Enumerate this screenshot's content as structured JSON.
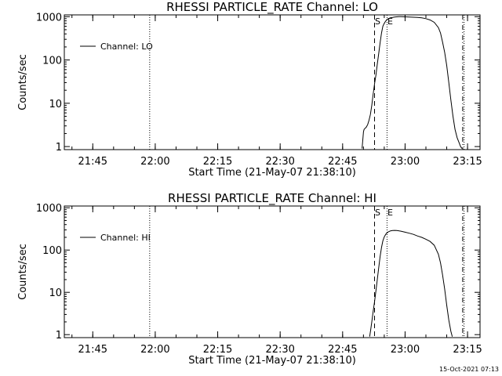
{
  "footer_timestamp": "15-Oct-2021 07:13",
  "chart_data": [
    {
      "type": "line",
      "title": "RHESSI PARTICLE_RATE Channel: LO",
      "xlabel": "Start Time (21-May-07 21:38:10)",
      "ylabel": "Counts/sec",
      "y_scale": "log",
      "xlim": [
        "21:38:10",
        "23:18:00"
      ],
      "ylim": [
        0.85,
        1100
      ],
      "x_ticks": [
        "21:45",
        "22:00",
        "22:15",
        "22:30",
        "22:45",
        "23:00",
        "23:15"
      ],
      "y_ticks": [
        "1",
        "10",
        "100",
        "1000"
      ],
      "grid": false,
      "legend": {
        "position": "upper-left",
        "entries": [
          "Channel: LO"
        ]
      },
      "markers": [
        {
          "label": "",
          "time": "21:58:40",
          "style": "dotted"
        },
        {
          "label": "S",
          "time": "22:52:40",
          "style": "dashed"
        },
        {
          "label": "E",
          "time": "22:55:40",
          "style": "dotted"
        },
        {
          "label": "",
          "time": "23:13:50",
          "style": "dashdot"
        },
        {
          "label": "",
          "time": "23:14:10",
          "style": "dotted"
        }
      ],
      "series": [
        {
          "name": "Channel: LO",
          "x": [
            "22:49:40",
            "22:49:50",
            "22:50:00",
            "22:50:10",
            "22:50:20",
            "22:50:40",
            "22:51:00",
            "22:51:20",
            "22:51:40",
            "22:52:00",
            "22:52:20",
            "22:52:40",
            "22:53:00",
            "22:53:20",
            "22:53:40",
            "22:54:00",
            "22:54:20",
            "22:54:40",
            "22:55:00",
            "22:55:20",
            "22:55:40",
            "22:56:00",
            "22:56:20",
            "22:56:40",
            "22:57:00",
            "22:57:30",
            "22:58:00",
            "22:58:30",
            "22:59:00",
            "23:00:00",
            "23:01:00",
            "23:02:00",
            "23:03:00",
            "23:04:00",
            "23:05:00",
            "23:06:00",
            "23:07:00",
            "23:08:00",
            "23:08:30",
            "23:09:00",
            "23:09:30",
            "23:10:00",
            "23:10:30",
            "23:11:00",
            "23:11:30",
            "23:12:00",
            "23:12:30",
            "23:13:00",
            "23:13:20",
            "23:13:40"
          ],
          "y": [
            0.9,
            1.4,
            2.2,
            2.5,
            2.6,
            2.8,
            3.2,
            4,
            5.5,
            9,
            16,
            28,
            45,
            80,
            140,
            250,
            420,
            600,
            700,
            790,
            860,
            900,
            930,
            950,
            960,
            980,
            990,
            1000,
            1000,
            990,
            980,
            970,
            960,
            940,
            900,
            840,
            740,
            560,
            420,
            260,
            150,
            75,
            30,
            12,
            5,
            2.5,
            1.6,
            1.2,
            1.0,
            0.9
          ]
        }
      ]
    },
    {
      "type": "line",
      "title": "RHESSI PARTICLE_RATE Channel: HI",
      "xlabel": "Start Time (21-May-07 21:38:10)",
      "ylabel": "Counts/sec",
      "y_scale": "log",
      "xlim": [
        "21:38:10",
        "23:18:00"
      ],
      "ylim": [
        0.85,
        1100
      ],
      "x_ticks": [
        "21:45",
        "22:00",
        "22:15",
        "22:30",
        "22:45",
        "23:00",
        "23:15"
      ],
      "y_ticks": [
        "1",
        "10",
        "100",
        "1000"
      ],
      "grid": false,
      "legend": {
        "position": "upper-left",
        "entries": [
          "Channel: HI"
        ]
      },
      "markers": [
        {
          "label": "",
          "time": "21:58:40",
          "style": "dotted"
        },
        {
          "label": "S",
          "time": "22:52:40",
          "style": "dashed"
        },
        {
          "label": "E",
          "time": "22:55:40",
          "style": "dotted"
        },
        {
          "label": "",
          "time": "23:13:50",
          "style": "dashdot"
        },
        {
          "label": "",
          "time": "23:14:10",
          "style": "dotted"
        }
      ],
      "series": [
        {
          "name": "Channel: HI",
          "x": [
            "22:51:30",
            "22:51:45",
            "22:52:00",
            "22:52:20",
            "22:52:40",
            "22:53:00",
            "22:53:20",
            "22:53:40",
            "22:54:00",
            "22:54:20",
            "22:54:40",
            "22:55:00",
            "22:55:20",
            "22:55:40",
            "22:56:00",
            "22:56:30",
            "22:57:00",
            "22:57:30",
            "22:58:00",
            "22:59:00",
            "23:00:00",
            "23:01:00",
            "23:02:00",
            "23:03:00",
            "23:04:00",
            "23:05:00",
            "23:06:00",
            "23:07:00",
            "23:08:00",
            "23:08:30",
            "23:09:00",
            "23:09:30",
            "23:10:00",
            "23:10:30",
            "23:11:00",
            "23:11:20"
          ],
          "y": [
            0.9,
            1.3,
            2,
            3.5,
            6,
            11,
            20,
            38,
            70,
            115,
            165,
            205,
            235,
            255,
            270,
            285,
            290,
            292,
            290,
            280,
            265,
            250,
            235,
            215,
            200,
            180,
            160,
            130,
            80,
            50,
            26,
            12,
            5,
            2.2,
            1.2,
            0.9
          ]
        }
      ]
    }
  ]
}
